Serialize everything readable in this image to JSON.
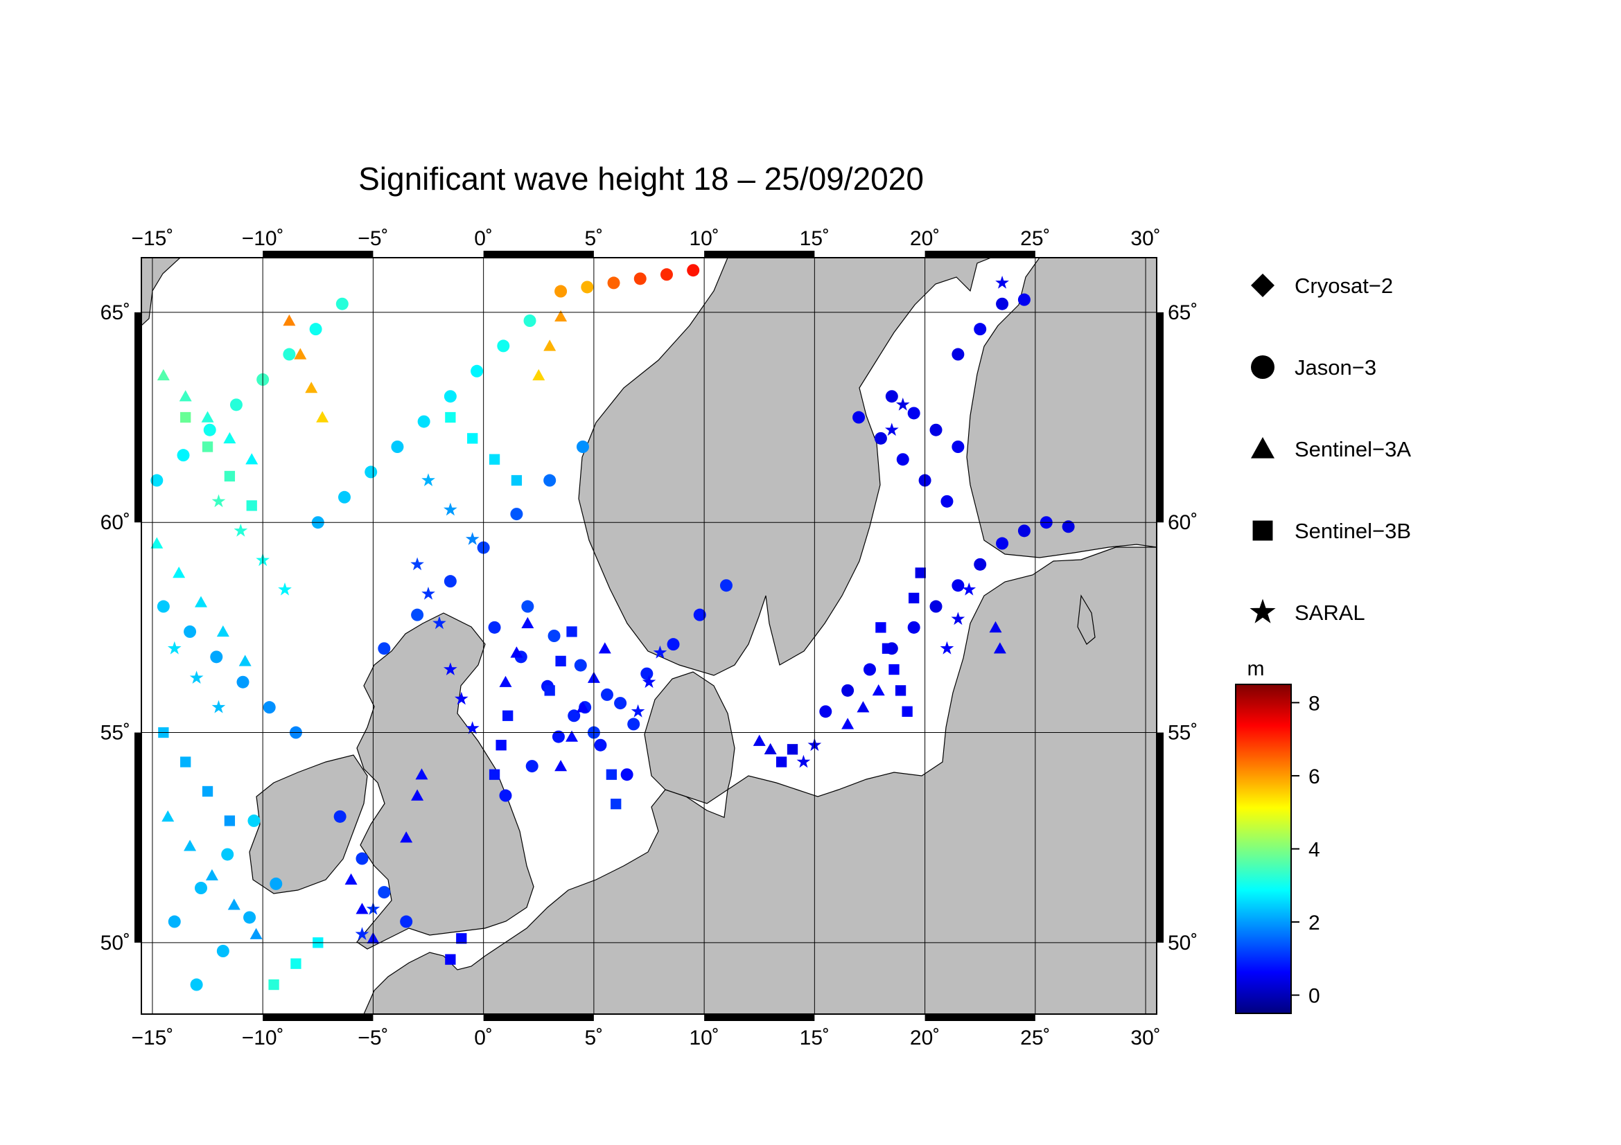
{
  "title": "Significant wave height 18 – 25/09/2020",
  "x_ticks": [
    {
      "value": -15,
      "label": "−15˚"
    },
    {
      "value": -10,
      "label": "−10˚"
    },
    {
      "value": -5,
      "label": "−5˚"
    },
    {
      "value": 0,
      "label": "0˚"
    },
    {
      "value": 5,
      "label": "5˚"
    },
    {
      "value": 10,
      "label": "10˚"
    },
    {
      "value": 15,
      "label": "15˚"
    },
    {
      "value": 20,
      "label": "20˚"
    },
    {
      "value": 25,
      "label": "25˚"
    },
    {
      "value": 30,
      "label": "30˚"
    }
  ],
  "y_ticks": [
    {
      "value": 50,
      "label": "50˚"
    },
    {
      "value": 55,
      "label": "55˚"
    },
    {
      "value": 60,
      "label": "60˚"
    },
    {
      "value": 65,
      "label": "65˚"
    }
  ],
  "legend": {
    "items": [
      {
        "label": "Cryosat−2",
        "symbol": "diamond"
      },
      {
        "label": "Jason−3",
        "symbol": "circle"
      },
      {
        "label": "Sentinel−3A",
        "symbol": "triangle"
      },
      {
        "label": "Sentinel−3B",
        "symbol": "square"
      },
      {
        "label": "SARAL",
        "symbol": "star"
      }
    ]
  },
  "colorbar": {
    "unit": "m",
    "range": [
      -0.5,
      8.5
    ],
    "ticks": [
      {
        "value": 0,
        "label": "0"
      },
      {
        "value": 2,
        "label": "2"
      },
      {
        "value": 4,
        "label": "4"
      },
      {
        "value": 6,
        "label": "6"
      },
      {
        "value": 8,
        "label": "8"
      }
    ],
    "colors": [
      "#00007f",
      "#0000ff",
      "#007fff",
      "#00ffff",
      "#7fff7f",
      "#ffff00",
      "#ff7f00",
      "#ff0000",
      "#7f0000"
    ]
  },
  "colors": {
    "land": "#bdbdbd",
    "sea": "#ffffff",
    "grid": "#000000"
  },
  "chart_data": {
    "type": "scatter",
    "title": "Significant wave height 18 – 25/09/2020",
    "xlim": [
      -15.5,
      30.5
    ],
    "ylim": [
      48.3,
      66.3
    ],
    "x_unit": "longitude (degrees E)",
    "y_unit": "latitude (degrees N)",
    "color_variable": "significant wave height (m)",
    "grid": true,
    "legend_position": "right",
    "series": [
      {
        "name": "Jason−3",
        "symbol": "circle",
        "points": [
          [
            -14.8,
            61.0,
            2.6
          ],
          [
            -13.6,
            61.6,
            2.8
          ],
          [
            -12.4,
            62.2,
            3.0
          ],
          [
            -11.2,
            62.8,
            3.2
          ],
          [
            -10.0,
            63.4,
            3.4
          ],
          [
            -8.8,
            64.0,
            3.2
          ],
          [
            -7.6,
            64.6,
            3.0
          ],
          [
            -6.4,
            65.2,
            3.2
          ],
          [
            -14.5,
            58.0,
            2.4
          ],
          [
            -13.3,
            57.4,
            2.2
          ],
          [
            -12.1,
            56.8,
            2.1
          ],
          [
            -10.9,
            56.2,
            2.0
          ],
          [
            -9.7,
            55.6,
            1.9
          ],
          [
            -8.5,
            55.0,
            1.8
          ],
          [
            -7.5,
            60.0,
            2.2
          ],
          [
            -6.3,
            60.6,
            2.4
          ],
          [
            -5.1,
            61.2,
            2.5
          ],
          [
            -3.9,
            61.8,
            2.4
          ],
          [
            -2.7,
            62.4,
            2.6
          ],
          [
            -1.5,
            63.0,
            2.7
          ],
          [
            -0.3,
            63.6,
            2.8
          ],
          [
            0.9,
            64.2,
            3.0
          ],
          [
            2.1,
            64.8,
            3.2
          ],
          [
            -4.5,
            57.0,
            1.2
          ],
          [
            -3.0,
            57.8,
            1.3
          ],
          [
            -1.5,
            58.6,
            1.1
          ],
          [
            0.0,
            59.4,
            1.2
          ],
          [
            1.5,
            60.2,
            1.4
          ],
          [
            3.0,
            61.0,
            1.6
          ],
          [
            4.5,
            61.8,
            1.9
          ],
          [
            0.5,
            57.5,
            1.0
          ],
          [
            1.7,
            56.8,
            0.9
          ],
          [
            2.9,
            56.1,
            0.8
          ],
          [
            4.1,
            55.4,
            0.9
          ],
          [
            5.3,
            54.7,
            0.8
          ],
          [
            6.5,
            54.0,
            0.7
          ],
          [
            2.0,
            58.0,
            1.3
          ],
          [
            3.2,
            57.3,
            1.2
          ],
          [
            4.4,
            56.6,
            1.1
          ],
          [
            5.6,
            55.9,
            1.0
          ],
          [
            6.8,
            55.2,
            1.0
          ],
          [
            5.0,
            55.0,
            1.1
          ],
          [
            6.2,
            55.7,
            1.0
          ],
          [
            7.4,
            56.4,
            0.9
          ],
          [
            8.6,
            57.1,
            0.8
          ],
          [
            9.8,
            57.8,
            0.8
          ],
          [
            11.0,
            58.5,
            1.0
          ],
          [
            1.0,
            53.5,
            0.8
          ],
          [
            2.2,
            54.2,
            0.9
          ],
          [
            3.4,
            54.9,
            0.8
          ],
          [
            4.6,
            55.6,
            0.9
          ],
          [
            3.5,
            65.5,
            6.0
          ],
          [
            4.7,
            65.6,
            5.8
          ],
          [
            5.9,
            65.7,
            6.5
          ],
          [
            7.1,
            65.8,
            6.8
          ],
          [
            8.3,
            65.9,
            7.0
          ],
          [
            9.5,
            66.0,
            7.2
          ],
          [
            17.0,
            62.5,
            0.5
          ],
          [
            18.0,
            62.0,
            0.4
          ],
          [
            19.0,
            61.5,
            0.5
          ],
          [
            20.0,
            61.0,
            0.4
          ],
          [
            21.0,
            60.5,
            0.5
          ],
          [
            18.5,
            63.0,
            0.4
          ],
          [
            19.5,
            62.6,
            0.5
          ],
          [
            20.5,
            62.2,
            0.4
          ],
          [
            21.5,
            61.8,
            0.5
          ],
          [
            21.5,
            64.0,
            0.4
          ],
          [
            22.5,
            64.6,
            0.5
          ],
          [
            23.5,
            65.2,
            0.4
          ],
          [
            24.5,
            65.3,
            0.5
          ],
          [
            15.5,
            55.5,
            0.5
          ],
          [
            16.5,
            56.0,
            0.4
          ],
          [
            17.5,
            56.5,
            0.5
          ],
          [
            18.5,
            57.0,
            0.4
          ],
          [
            19.5,
            57.5,
            0.5
          ],
          [
            20.5,
            58.0,
            0.4
          ],
          [
            21.5,
            58.5,
            0.5
          ],
          [
            22.5,
            59.0,
            0.4
          ],
          [
            23.5,
            59.5,
            0.5
          ],
          [
            24.5,
            59.8,
            0.4
          ],
          [
            25.5,
            60.0,
            0.5
          ],
          [
            26.5,
            59.9,
            0.4
          ],
          [
            -6.5,
            53.0,
            1.0
          ],
          [
            -5.5,
            52.0,
            1.1
          ],
          [
            -4.5,
            51.2,
            1.2
          ],
          [
            -3.5,
            50.5,
            1.0
          ],
          [
            -14.0,
            50.5,
            2.2
          ],
          [
            -12.8,
            51.3,
            2.3
          ],
          [
            -11.6,
            52.1,
            2.4
          ],
          [
            -10.4,
            52.9,
            2.5
          ],
          [
            -13.0,
            49.0,
            2.4
          ],
          [
            -11.8,
            49.8,
            2.3
          ],
          [
            -10.6,
            50.6,
            2.2
          ],
          [
            -9.4,
            51.4,
            2.1
          ]
        ]
      },
      {
        "name": "Sentinel−3A",
        "symbol": "triangle",
        "points": [
          [
            -14.5,
            63.5,
            3.6
          ],
          [
            -13.5,
            63.0,
            3.4
          ],
          [
            -12.5,
            62.5,
            3.2
          ],
          [
            -11.5,
            62.0,
            3.0
          ],
          [
            -10.5,
            61.5,
            2.8
          ],
          [
            -14.8,
            59.5,
            3.0
          ],
          [
            -13.8,
            58.8,
            2.8
          ],
          [
            -12.8,
            58.1,
            2.6
          ],
          [
            -11.8,
            57.4,
            2.5
          ],
          [
            -10.8,
            56.7,
            2.4
          ],
          [
            -8.8,
            64.8,
            6.2
          ],
          [
            -8.3,
            64.0,
            6.0
          ],
          [
            -7.8,
            63.2,
            5.8
          ],
          [
            -7.3,
            62.5,
            5.5
          ],
          [
            -14.3,
            53.0,
            2.4
          ],
          [
            -13.3,
            52.3,
            2.3
          ],
          [
            -12.3,
            51.6,
            2.2
          ],
          [
            -11.3,
            50.9,
            2.1
          ],
          [
            -10.3,
            50.2,
            2.0
          ],
          [
            -6.0,
            51.5,
            0.7
          ],
          [
            -5.5,
            50.8,
            0.6
          ],
          [
            -5.0,
            50.1,
            0.7
          ],
          [
            2.5,
            63.5,
            5.5
          ],
          [
            3.0,
            64.2,
            5.8
          ],
          [
            3.5,
            64.9,
            6.0
          ],
          [
            3.5,
            54.2,
            0.6
          ],
          [
            4.0,
            54.9,
            0.7
          ],
          [
            4.5,
            55.6,
            0.6
          ],
          [
            5.0,
            56.3,
            0.7
          ],
          [
            5.5,
            57.0,
            0.6
          ],
          [
            1.0,
            56.2,
            0.7
          ],
          [
            1.5,
            56.9,
            0.6
          ],
          [
            2.0,
            57.6,
            0.7
          ],
          [
            12.5,
            54.8,
            0.5
          ],
          [
            13.0,
            54.6,
            0.4
          ],
          [
            16.5,
            55.2,
            0.6
          ],
          [
            17.2,
            55.6,
            0.5
          ],
          [
            17.9,
            56.0,
            0.6
          ],
          [
            23.2,
            57.5,
            0.5
          ],
          [
            23.4,
            57.0,
            0.5
          ],
          [
            -3.0,
            53.5,
            0.6
          ],
          [
            -2.8,
            54.0,
            0.7
          ],
          [
            -3.5,
            52.5,
            0.6
          ]
        ]
      },
      {
        "name": "Sentinel−3B",
        "symbol": "square",
        "points": [
          [
            -13.5,
            62.5,
            3.8
          ],
          [
            -12.5,
            61.8,
            3.6
          ],
          [
            -11.5,
            61.1,
            3.4
          ],
          [
            -10.5,
            60.4,
            3.2
          ],
          [
            -14.5,
            55.0,
            2.3
          ],
          [
            -13.5,
            54.3,
            2.2
          ],
          [
            -12.5,
            53.6,
            2.1
          ],
          [
            -11.5,
            52.9,
            2.0
          ],
          [
            -9.5,
            49.0,
            3.2
          ],
          [
            -8.5,
            49.5,
            3.0
          ],
          [
            -7.5,
            50.0,
            2.8
          ],
          [
            -1.5,
            62.5,
            3.0
          ],
          [
            -0.5,
            62.0,
            2.8
          ],
          [
            0.5,
            61.5,
            2.6
          ],
          [
            1.5,
            61.0,
            2.4
          ],
          [
            3.0,
            56.0,
            0.9
          ],
          [
            3.5,
            56.7,
            0.8
          ],
          [
            4.0,
            57.4,
            0.9
          ],
          [
            0.5,
            54.0,
            0.8
          ],
          [
            0.8,
            54.7,
            0.7
          ],
          [
            1.1,
            55.4,
            0.8
          ],
          [
            5.8,
            54.0,
            1.0
          ],
          [
            6.0,
            53.3,
            1.1
          ],
          [
            18.0,
            57.5,
            0.6
          ],
          [
            18.3,
            57.0,
            0.5
          ],
          [
            18.6,
            56.5,
            0.6
          ],
          [
            18.9,
            56.0,
            0.5
          ],
          [
            19.2,
            55.5,
            0.6
          ],
          [
            19.5,
            58.2,
            0.5
          ],
          [
            19.8,
            58.8,
            0.4
          ],
          [
            13.5,
            54.3,
            0.5
          ],
          [
            14.0,
            54.6,
            0.4
          ],
          [
            -1.5,
            49.6,
            0.6
          ],
          [
            -1.0,
            50.1,
            0.7
          ]
        ]
      },
      {
        "name": "SARAL",
        "symbol": "star",
        "points": [
          [
            -12.0,
            60.5,
            3.4
          ],
          [
            -11.0,
            59.8,
            3.2
          ],
          [
            -10.0,
            59.1,
            3.0
          ],
          [
            -9.0,
            58.4,
            2.8
          ],
          [
            -14.0,
            57.0,
            2.6
          ],
          [
            -13.0,
            56.3,
            2.4
          ],
          [
            -12.0,
            55.6,
            2.3
          ],
          [
            -2.5,
            61.0,
            2.2
          ],
          [
            -1.5,
            60.3,
            2.0
          ],
          [
            -0.5,
            59.6,
            1.8
          ],
          [
            -3.0,
            59.0,
            1.2
          ],
          [
            -2.5,
            58.3,
            1.1
          ],
          [
            -2.0,
            57.6,
            1.0
          ],
          [
            -1.5,
            56.5,
            0.7
          ],
          [
            -1.0,
            55.8,
            0.6
          ],
          [
            -0.5,
            55.1,
            0.7
          ],
          [
            7.0,
            55.5,
            0.8
          ],
          [
            7.5,
            56.2,
            0.7
          ],
          [
            8.0,
            56.9,
            0.8
          ],
          [
            21.0,
            57.0,
            0.6
          ],
          [
            21.5,
            57.7,
            0.5
          ],
          [
            22.0,
            58.4,
            0.6
          ],
          [
            14.5,
            54.3,
            0.5
          ],
          [
            15.0,
            54.7,
            0.4
          ],
          [
            -5.5,
            50.2,
            1.0
          ],
          [
            -5.0,
            50.8,
            1.1
          ],
          [
            18.5,
            62.2,
            0.5
          ],
          [
            19.0,
            62.8,
            0.4
          ],
          [
            23.5,
            65.7,
            0.5
          ]
        ]
      },
      {
        "name": "Cryosat−2",
        "symbol": "diamond",
        "points": []
      }
    ]
  }
}
